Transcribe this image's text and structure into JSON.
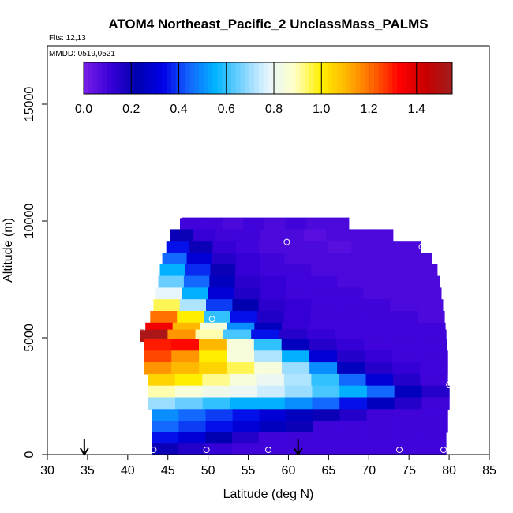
{
  "chart_data": {
    "type": "heatmap",
    "title": "ATOM4 Northeast_Pacific_2 UnclassMass_PALMS",
    "flights_note": "Flts: 12,13",
    "dates_note": "MMDD: 0519,0521",
    "xlabel": "Latitude (deg N)",
    "ylabel": "Altitude (m)",
    "xlim": [
      30,
      85
    ],
    "ylim": [
      0,
      17500
    ],
    "x_ticks": [
      "30",
      "35",
      "40",
      "45",
      "50",
      "55",
      "60",
      "65",
      "70",
      "75",
      "80",
      "85"
    ],
    "y_ticks": [
      "0",
      "5000",
      "10000",
      "15000"
    ],
    "colorbar": {
      "min": 0.0,
      "max": 1.55,
      "tick_labels": [
        "0.0",
        "0.2",
        "0.4",
        "0.6",
        "0.8",
        "1.0",
        "1.2",
        "1.4"
      ],
      "tick_values": [
        0.0,
        0.2,
        0.4,
        0.6,
        0.8,
        1.0,
        1.2,
        1.4
      ],
      "palette": [
        "#7b1fe8",
        "#3a00d8",
        "#0000b0",
        "#0000e6",
        "#1464ff",
        "#00b4ff",
        "#78d2ff",
        "#e6f5ff",
        "#ffffc8",
        "#fff000",
        "#ffb400",
        "#ff6400",
        "#ff0000",
        "#c80000",
        "#a01e1e"
      ]
    },
    "layers": [
      {
        "alt": 9900,
        "lat_start": 46.5,
        "lat_end": 67.5,
        "values": [
          0.1,
          0.1,
          0.08,
          0.1,
          0.08,
          0.1,
          0.08,
          0.08
        ]
      },
      {
        "alt": 9400,
        "lat_start": 45.3,
        "lat_end": 73.0,
        "values": [
          0.2,
          0.12,
          0.1,
          0.1,
          0.08,
          0.08,
          0.06,
          0.08,
          0.08,
          0.08
        ]
      },
      {
        "alt": 8900,
        "lat_start": 44.8,
        "lat_end": 76.5,
        "values": [
          0.35,
          0.2,
          0.12,
          0.1,
          0.08,
          0.08,
          0.08,
          0.06,
          0.08,
          0.08,
          0.08
        ]
      },
      {
        "alt": 8400,
        "lat_start": 44.3,
        "lat_end": 77.8,
        "values": [
          0.45,
          0.3,
          0.15,
          0.12,
          0.1,
          0.08,
          0.08,
          0.08,
          0.08,
          0.08,
          0.08
        ]
      },
      {
        "alt": 7900,
        "lat_start": 44.0,
        "lat_end": 78.5,
        "values": [
          0.55,
          0.38,
          0.2,
          0.12,
          0.1,
          0.1,
          0.08,
          0.08,
          0.08,
          0.08,
          0.08
        ]
      },
      {
        "alt": 7400,
        "lat_start": 43.8,
        "lat_end": 78.8,
        "values": [
          0.65,
          0.45,
          0.25,
          0.14,
          0.12,
          0.1,
          0.1,
          0.08,
          0.08,
          0.08,
          0.08
        ]
      },
      {
        "alt": 6900,
        "lat_start": 43.5,
        "lat_end": 79.0,
        "values": [
          0.78,
          0.55,
          0.3,
          0.16,
          0.12,
          0.1,
          0.1,
          0.1,
          0.08,
          0.08,
          0.08
        ]
      },
      {
        "alt": 6400,
        "lat_start": 43.2,
        "lat_end": 79.2,
        "values": [
          0.95,
          0.72,
          0.4,
          0.22,
          0.14,
          0.12,
          0.1,
          0.1,
          0.1,
          0.08,
          0.08
        ]
      },
      {
        "alt": 5900,
        "lat_start": 42.8,
        "lat_end": 79.4,
        "values": [
          1.2,
          1.0,
          0.6,
          0.35,
          0.16,
          0.12,
          0.1,
          0.1,
          0.1,
          0.1,
          0.08
        ]
      },
      {
        "alt": 5400,
        "lat_start": 42.2,
        "lat_end": 79.5,
        "values": [
          1.35,
          1.1,
          0.85,
          0.5,
          0.25,
          0.12,
          0.1,
          0.1,
          0.1,
          0.1,
          0.1
        ]
      },
      {
        "alt": 5100,
        "lat_start": 41.5,
        "lat_end": 79.6,
        "values": [
          1.52,
          1.15,
          0.9,
          0.62,
          0.35,
          0.15,
          0.12,
          0.1,
          0.1,
          0.1,
          0.1
        ]
      },
      {
        "alt": 4700,
        "lat_start": 42.0,
        "lat_end": 79.7,
        "values": [
          1.3,
          1.32,
          1.1,
          0.85,
          0.6,
          0.25,
          0.15,
          0.12,
          0.1,
          0.1,
          0.1
        ]
      },
      {
        "alt": 4200,
        "lat_start": 42.0,
        "lat_end": 79.8,
        "values": [
          1.25,
          1.15,
          1.0,
          0.85,
          0.72,
          0.55,
          0.3,
          0.15,
          0.12,
          0.1,
          0.1
        ]
      },
      {
        "alt": 3700,
        "lat_start": 42.0,
        "lat_end": 79.8,
        "values": [
          1.15,
          1.1,
          1.05,
          0.95,
          0.85,
          0.7,
          0.5,
          0.25,
          0.15,
          0.12,
          0.1
        ]
      },
      {
        "alt": 3200,
        "lat_start": 42.5,
        "lat_end": 79.8,
        "values": [
          1.05,
          1.0,
          0.92,
          0.85,
          0.8,
          0.72,
          0.6,
          0.45,
          0.3,
          0.15,
          0.1
        ]
      },
      {
        "alt": 2700,
        "lat_start": 42.5,
        "lat_end": 80.0,
        "values": [
          0.9,
          0.85,
          0.82,
          0.8,
          0.75,
          0.7,
          0.62,
          0.55,
          0.45,
          0.25,
          0.15
        ]
      },
      {
        "alt": 2200,
        "lat_start": 42.5,
        "lat_end": 80.0,
        "values": [
          0.7,
          0.65,
          0.6,
          0.55,
          0.55,
          0.5,
          0.45,
          0.35,
          0.25,
          0.15,
          0.1
        ]
      },
      {
        "alt": 1700,
        "lat_start": 43.0,
        "lat_end": 79.8,
        "values": [
          0.5,
          0.45,
          0.4,
          0.35,
          0.3,
          0.25,
          0.2,
          0.15,
          0.1,
          0.1,
          0.1
        ]
      },
      {
        "alt": 1200,
        "lat_start": 43.0,
        "lat_end": 79.8,
        "values": [
          0.45,
          0.4,
          0.35,
          0.3,
          0.25,
          0.2,
          0.1,
          0.1,
          0.1,
          0.1,
          0.1
        ]
      },
      {
        "alt": 700,
        "lat_start": 43.0,
        "lat_end": 79.6,
        "values": [
          0.35,
          0.3,
          0.22,
          0.15,
          0.1,
          0.1,
          0.1,
          0.1,
          0.1,
          0.1,
          0.1
        ]
      },
      {
        "alt": 250,
        "lat_start": 43.0,
        "lat_end": 79.6,
        "values": [
          0.2,
          0.15,
          0.12,
          0.1,
          0.1,
          0.1,
          0.1,
          0.1,
          0.1,
          0.1,
          0.1
        ]
      }
    ],
    "profile_points": [
      {
        "lat": 43.2,
        "alt": 200
      },
      {
        "lat": 49.8,
        "alt": 200
      },
      {
        "lat": 57.5,
        "alt": 200
      },
      {
        "lat": 73.8,
        "alt": 200
      },
      {
        "lat": 79.3,
        "alt": 200
      },
      {
        "lat": 41.8,
        "alt": 5400
      },
      {
        "lat": 50.5,
        "alt": 5800
      },
      {
        "lat": 46.5,
        "alt": 10250
      },
      {
        "lat": 59.8,
        "alt": 9100
      },
      {
        "lat": 69.8,
        "alt": 10750
      },
      {
        "lat": 76.6,
        "alt": 8900
      },
      {
        "lat": 80.0,
        "alt": 3000
      }
    ],
    "arrows": [
      {
        "lat": 34.6
      },
      {
        "lat": 61.2
      }
    ]
  }
}
